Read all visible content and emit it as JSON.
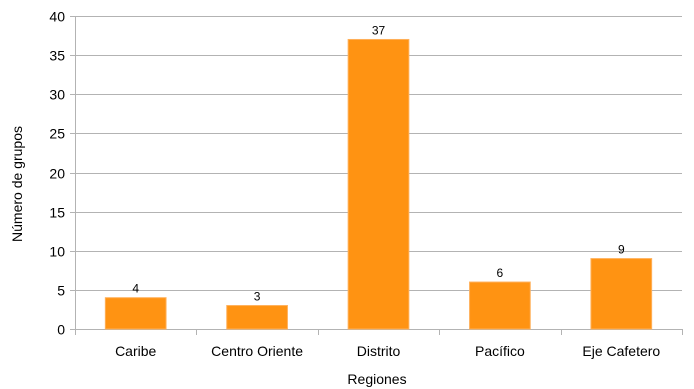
{
  "chart_data": {
    "type": "bar",
    "categories": [
      "Caribe",
      "Centro Oriente",
      "Distrito",
      "Pacífico",
      "Eje Cafetero"
    ],
    "values": [
      4,
      3,
      37,
      6,
      9
    ],
    "data_labels": [
      "4",
      "3",
      "37",
      "6",
      "9"
    ],
    "title": "",
    "xlabel": "Regiones",
    "ylabel": "Número de grupos",
    "ylim": [
      0,
      40
    ],
    "yticks": [
      0,
      5,
      10,
      15,
      20,
      25,
      30,
      35,
      40
    ],
    "grid": true,
    "legend": "none",
    "bar_color": "#ff9312",
    "bar_edge_color": "#ffb05a",
    "grid_color": "#b3b3b3"
  }
}
